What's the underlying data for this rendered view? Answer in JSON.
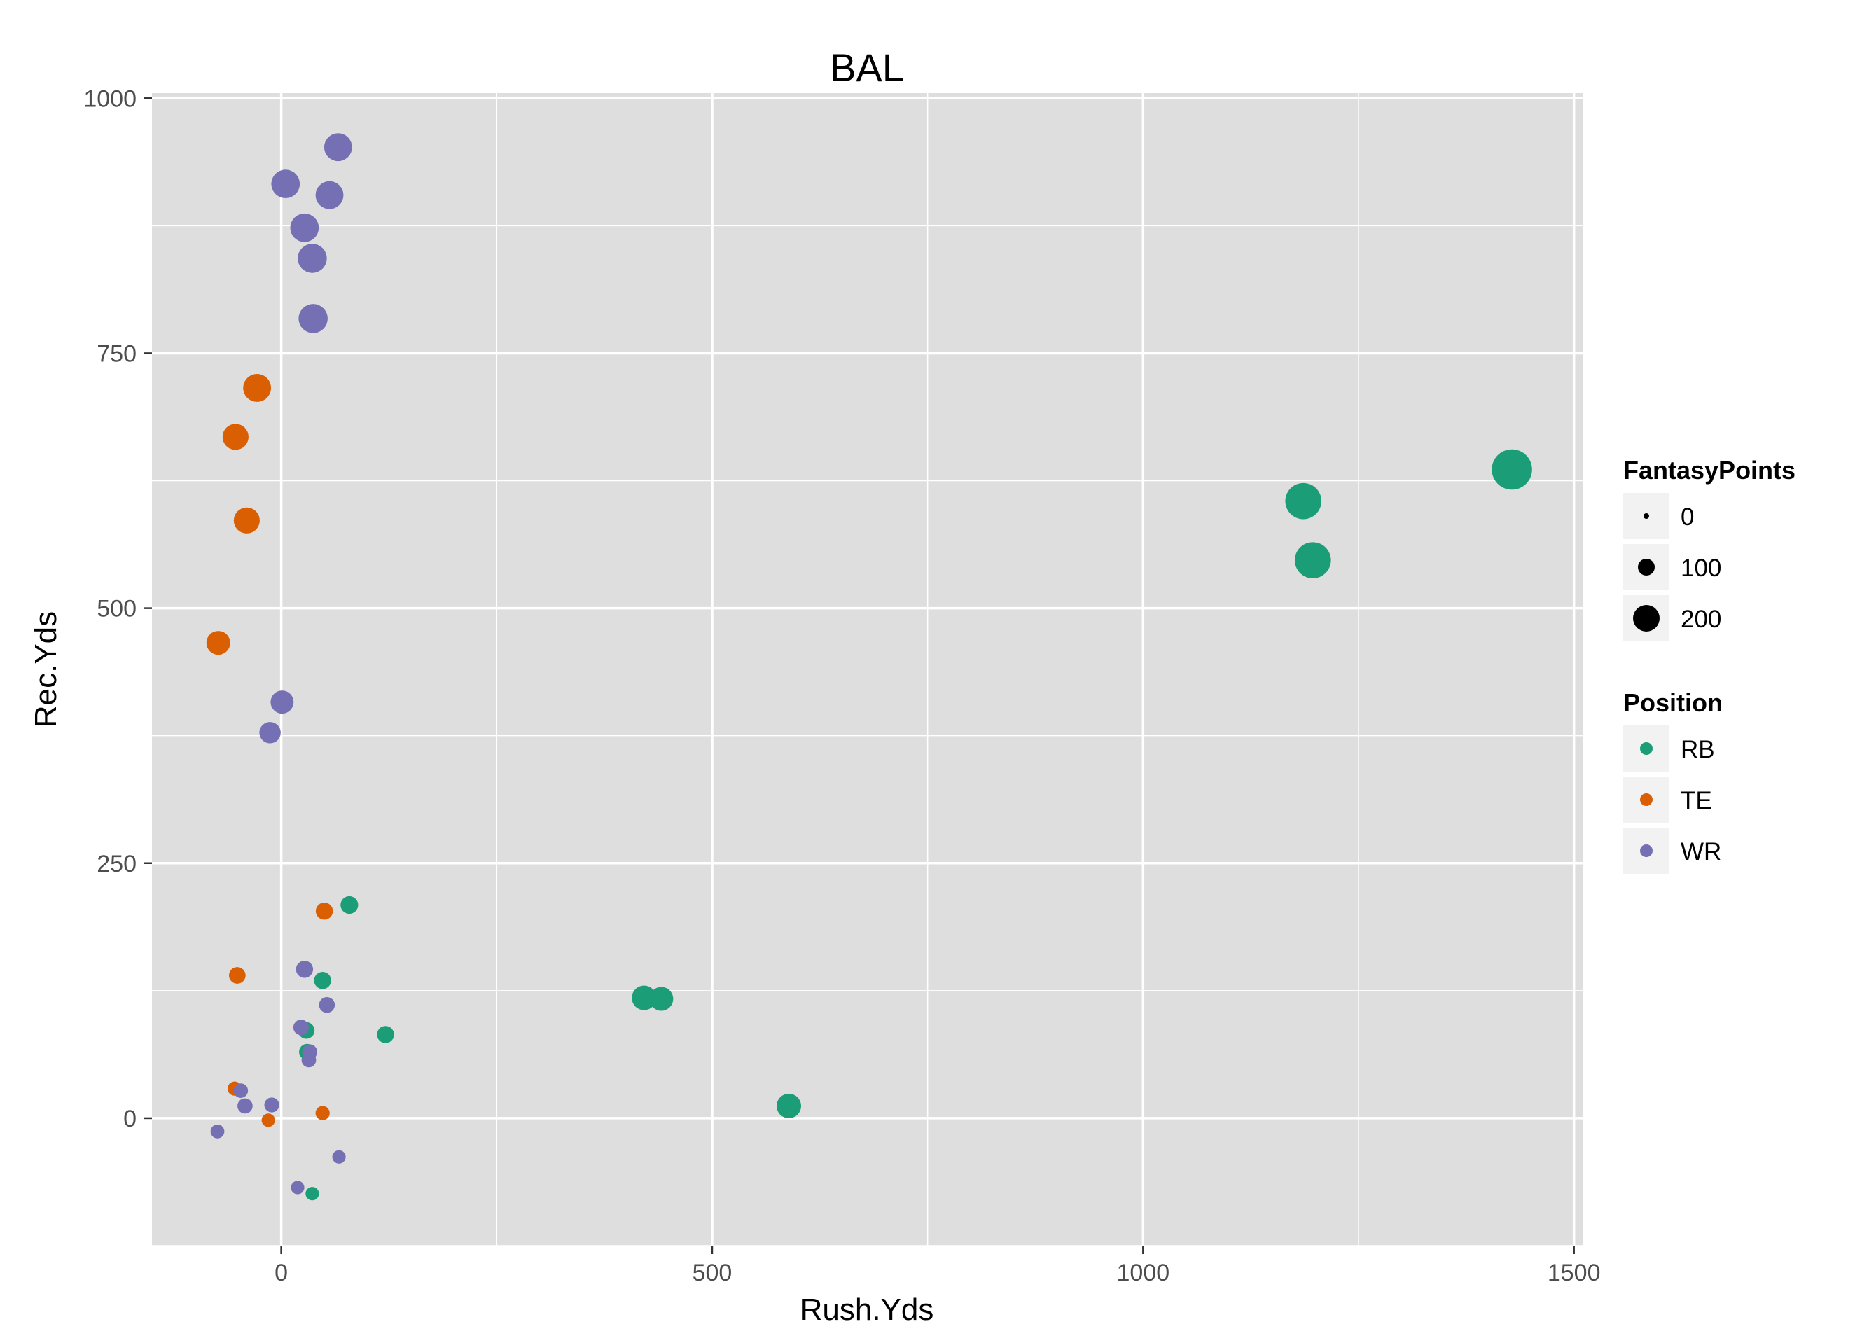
{
  "chart_data": {
    "type": "scatter",
    "title": "BAL",
    "xlabel": "Rush.Yds",
    "ylabel": "Rec.Yds",
    "xlim": [
      -150,
      1510
    ],
    "ylim": [
      -125,
      1005
    ],
    "x_ticks": [
      0,
      500,
      1000,
      1500
    ],
    "y_ticks": [
      0,
      250,
      500,
      750,
      1000
    ],
    "x_tick_labels": [
      "0",
      "500",
      "1000",
      "1500"
    ],
    "y_tick_labels": [
      "0",
      "250",
      "500",
      "750",
      "1000"
    ],
    "grid": true,
    "panel_background": "#dedede",
    "grid_color": "#ffffff",
    "legend_position": "right",
    "size_legend": {
      "title": "FantasyPoints",
      "entries": [
        {
          "label": "0",
          "value": 0
        },
        {
          "label": "100",
          "value": 100
        },
        {
          "label": "200",
          "value": 200
        }
      ]
    },
    "color_legend": {
      "title": "Position",
      "entries": [
        {
          "label": "RB",
          "color": "#1b9e77"
        },
        {
          "label": "TE",
          "color": "#d95f02"
        },
        {
          "label": "WR",
          "color": "#7570b3"
        }
      ]
    },
    "series": [
      {
        "name": "RB",
        "color": "#1b9e77",
        "points": [
          {
            "x": 1428,
            "y": 636,
            "size": 215
          },
          {
            "x": 1186,
            "y": 605,
            "size": 165
          },
          {
            "x": 1197,
            "y": 547,
            "size": 165
          },
          {
            "x": 589,
            "y": 12,
            "size": 60
          },
          {
            "x": 421,
            "y": 118,
            "size": 60
          },
          {
            "x": 441,
            "y": 117,
            "size": 55
          },
          {
            "x": 79,
            "y": 209,
            "size": 22
          },
          {
            "x": 121,
            "y": 82,
            "size": 20
          },
          {
            "x": 48,
            "y": 135,
            "size": 20
          },
          {
            "x": 29,
            "y": 86,
            "size": 18
          },
          {
            "x": 30,
            "y": 65,
            "size": 16
          },
          {
            "x": 36,
            "y": -74,
            "size": 8
          }
        ]
      },
      {
        "name": "TE",
        "color": "#d95f02",
        "points": [
          {
            "x": -28,
            "y": 716,
            "size": 85
          },
          {
            "x": -53,
            "y": 668,
            "size": 70
          },
          {
            "x": -40,
            "y": 586,
            "size": 70
          },
          {
            "x": -73,
            "y": 466,
            "size": 55
          },
          {
            "x": 50,
            "y": 203,
            "size": 20
          },
          {
            "x": -51,
            "y": 140,
            "size": 18
          },
          {
            "x": -54,
            "y": 29,
            "size": 10
          },
          {
            "x": 48,
            "y": 5,
            "size": 10
          },
          {
            "x": -15,
            "y": -2,
            "size": 8
          }
        ]
      },
      {
        "name": "WR",
        "color": "#7570b3",
        "points": [
          {
            "x": 66,
            "y": 952,
            "size": 85
          },
          {
            "x": 5,
            "y": 916,
            "size": 90
          },
          {
            "x": 56,
            "y": 905,
            "size": 85
          },
          {
            "x": 27,
            "y": 873,
            "size": 90
          },
          {
            "x": 36,
            "y": 843,
            "size": 95
          },
          {
            "x": 37,
            "y": 784,
            "size": 95
          },
          {
            "x": 1,
            "y": 408,
            "size": 50
          },
          {
            "x": -13,
            "y": 378,
            "size": 40
          },
          {
            "x": 27,
            "y": 146,
            "size": 20
          },
          {
            "x": 53,
            "y": 111,
            "size": 15
          },
          {
            "x": 23,
            "y": 89,
            "size": 14
          },
          {
            "x": 33,
            "y": 65,
            "size": 13
          },
          {
            "x": 32,
            "y": 57,
            "size": 11
          },
          {
            "x": -47,
            "y": 27,
            "size": 11
          },
          {
            "x": -42,
            "y": 12,
            "size": 13
          },
          {
            "x": -11,
            "y": 13,
            "size": 12
          },
          {
            "x": -74,
            "y": -13,
            "size": 9
          },
          {
            "x": 67,
            "y": -38,
            "size": 8
          },
          {
            "x": 19,
            "y": -68,
            "size": 8
          }
        ]
      }
    ]
  }
}
